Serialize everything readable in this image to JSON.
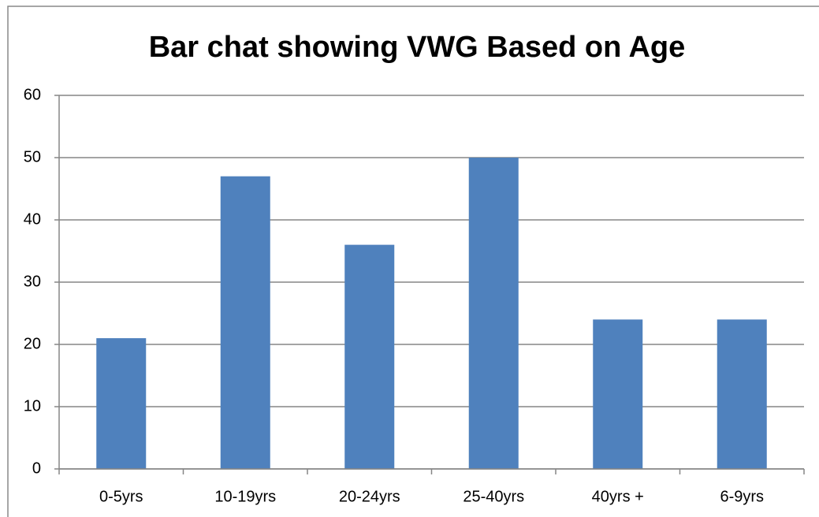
{
  "chart_data": {
    "type": "bar",
    "title": "Bar chat showing VWG Based on Age",
    "categories": [
      "0-5yrs",
      "10-19yrs",
      "20-24yrs",
      "25-40yrs",
      "40yrs +",
      "6-9yrs"
    ],
    "values": [
      21,
      47,
      36,
      50,
      24,
      24
    ],
    "color": "#4f81bd",
    "ylim": [
      0,
      60
    ],
    "yticks": [
      0,
      10,
      20,
      30,
      40,
      50,
      60
    ],
    "grid": true
  }
}
